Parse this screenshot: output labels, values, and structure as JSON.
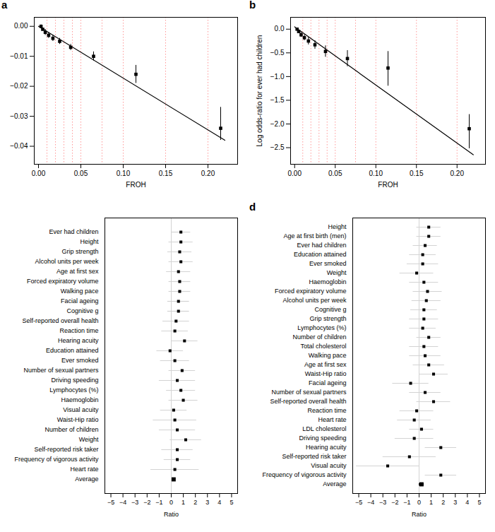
{
  "chart_data": [
    {
      "type": "scatter",
      "label": "a",
      "x": [
        0.003,
        0.005,
        0.008,
        0.012,
        0.017,
        0.025,
        0.038,
        0.065,
        0.115,
        0.215
      ],
      "y": [
        0.0,
        -0.001,
        -0.002,
        -0.003,
        -0.004,
        -0.005,
        -0.007,
        -0.01,
        -0.016,
        -0.034
      ],
      "error_low": [
        0.0005,
        0.0005,
        0.001,
        0.001,
        0.001,
        0.001,
        0.001,
        0.0015,
        0.003,
        0.004
      ],
      "error_high": [
        0.0005,
        0.0005,
        0.001,
        0.001,
        0.001,
        0.001,
        0.001,
        0.0015,
        0.003,
        0.007
      ],
      "color": "black",
      "marker": "square",
      "fit": {
        "x": [
          0.0,
          0.22
        ],
        "y": [
          0.0,
          -0.038
        ],
        "color": "black"
      },
      "vlines": {
        "values": [
          0.01,
          0.02,
          0.03,
          0.04,
          0.05,
          0.075,
          0.1,
          0.15,
          0.2
        ],
        "color": "#FF9999",
        "line_style": "dotted"
      },
      "xlabel": "FROH",
      "xlim": [
        -0.005,
        0.235
      ],
      "ylim": [
        -0.046,
        0.003
      ],
      "xticks": [
        {
          "value": 0,
          "label": "0.00"
        },
        0.05,
        {
          "value": 0.1,
          "label": "0.10"
        },
        0.15,
        {
          "value": 0.2,
          "label": "0.20"
        }
      ],
      "yticks": [
        {
          "value": 0,
          "label": "0.00"
        },
        {
          "value": -0.01,
          "label": "−0.01"
        },
        {
          "value": -0.02,
          "label": "−0.02"
        },
        {
          "value": -0.03,
          "label": "−0.03"
        },
        {
          "value": -0.04,
          "label": "−0.04"
        }
      ]
    },
    {
      "type": "scatter",
      "label": "b",
      "x": [
        0.003,
        0.005,
        0.008,
        0.012,
        0.017,
        0.025,
        0.038,
        0.065,
        0.115,
        0.215
      ],
      "y": [
        0.0,
        -0.05,
        -0.12,
        -0.18,
        -0.25,
        -0.33,
        -0.47,
        -0.62,
        -0.82,
        -2.1
      ],
      "error_low": [
        0.02,
        0.03,
        0.05,
        0.06,
        0.08,
        0.09,
        0.12,
        0.17,
        0.38,
        0.42
      ],
      "error_high": [
        0.02,
        0.03,
        0.05,
        0.06,
        0.08,
        0.09,
        0.12,
        0.17,
        0.35,
        0.3
      ],
      "color": "black",
      "marker": "square",
      "fit": {
        "x": [
          0.0,
          0.22
        ],
        "y": [
          0.05,
          -2.65
        ],
        "color": "black"
      },
      "vlines": {
        "values": [
          0.01,
          0.02,
          0.03,
          0.04,
          0.05,
          0.075,
          0.1,
          0.15,
          0.2
        ],
        "color": "#FF9999",
        "line_style": "dotted"
      },
      "xlabel": "FROH",
      "ylabel": "Log odds-ratio for ever had children",
      "xlim": [
        -0.005,
        0.235
      ],
      "ylim": [
        -2.85,
        0.25
      ],
      "xticks": [
        {
          "value": 0,
          "label": "0.00"
        },
        0.05,
        {
          "value": 0.1,
          "label": "0.10"
        },
        0.15,
        {
          "value": 0.2,
          "label": "0.20"
        }
      ],
      "yticks": [
        {
          "value": 0,
          "label": "0.0"
        },
        {
          "value": -0.5,
          "label": "−0.5"
        },
        {
          "value": -1,
          "label": "−1.0"
        },
        {
          "value": -1.5,
          "label": "−1.5"
        },
        {
          "value": -2,
          "label": "−2.0"
        },
        {
          "value": -2.5,
          "label": "−2.5"
        }
      ]
    },
    {
      "type": "forest",
      "orientation": "horizontal",
      "categories": [
        "Ever had children",
        "Height",
        "Grip strength",
        "Alcohol units per week",
        "Age at first sex",
        "Forced expiratory volume",
        "Walking pace",
        "Facial ageing",
        "Cognitive g",
        "Self-reported overall health",
        "Reaction time",
        "Hearing acuity",
        "Education attained",
        "Ever smoked",
        "Number of sexual partners",
        "Driving speeding",
        "Lymphocytes (%)",
        "Haemoglobin",
        "Visual acuity",
        "Waist-Hip ratio",
        "Number of children",
        "Weight",
        "Self-reported risk taker",
        "Frequency of vigorous activity",
        "Heart rate",
        "Average"
      ],
      "values": [
        0.8,
        0.8,
        0.7,
        0.8,
        0.6,
        0.7,
        0.7,
        0.6,
        0.6,
        0.4,
        0.3,
        1.1,
        -0.1,
        0.3,
        0.9,
        0.5,
        0.8,
        1.0,
        0.2,
        0.3,
        0.5,
        1.2,
        0.5,
        0.5,
        0.3,
        0.2
      ],
      "ci_low": [
        0.0,
        -0.2,
        -0.3,
        -0.2,
        -0.4,
        -0.2,
        -0.2,
        -0.3,
        -0.3,
        -0.7,
        -0.8,
        0.0,
        -1.2,
        -0.9,
        -0.2,
        -1.0,
        -0.4,
        -0.2,
        -0.9,
        -1.5,
        -1.0,
        -0.1,
        -0.8,
        -0.6,
        -1.7,
        0.1
      ],
      "ci_high": [
        1.6,
        1.8,
        1.7,
        1.8,
        1.6,
        1.6,
        1.6,
        1.5,
        1.5,
        1.5,
        1.4,
        2.2,
        1.0,
        1.5,
        2.0,
        2.0,
        2.0,
        2.2,
        1.3,
        2.1,
        2.0,
        2.5,
        1.8,
        1.6,
        2.3,
        0.3
      ],
      "color": "black",
      "marker": "square",
      "colors": [
        "lightgray",
        "lightgray",
        "lightgray",
        "lightgray",
        "lightgray",
        "lightgray",
        "lightgray",
        "lightgray",
        "lightgray",
        "lightgray",
        "lightgray",
        "lightgray",
        "lightgray",
        "lightgray",
        "lightgray",
        "lightgray",
        "lightgray",
        "lightgray",
        "lightgray",
        "lightgray",
        "lightgray",
        "lightgray",
        "lightgray",
        "lightgray",
        "lightgray",
        "black"
      ],
      "vlines": {
        "values": [
          0
        ],
        "color": "lightgray",
        "line_style": "solid"
      },
      "xlabel": "Ratio",
      "xlim": [
        -5.5,
        5.5
      ],
      "xticks": [
        {
          "value": -5,
          "label": "−5"
        },
        {
          "value": -4,
          "label": "−4"
        },
        {
          "value": -3,
          "label": "−3"
        },
        {
          "value": -2,
          "label": "−2"
        },
        {
          "value": -1,
          "label": "−1"
        },
        0,
        1,
        2,
        3,
        4,
        5
      ]
    },
    {
      "type": "forest",
      "orientation": "horizontal",
      "label": "d",
      "categories": [
        "Height",
        "Age at first birth (men)",
        "Ever had children",
        "Education attained",
        "Ever smoked",
        "Weight",
        "Haemoglobin",
        "Forced expiratory volume",
        "Alcohol units per week",
        "Cognitive g",
        "Grip strength",
        "Lymphocytes (%)",
        "Number of children",
        "Total cholesterol",
        "Walking pace",
        "Age at first sex",
        "Waist-Hip ratio",
        "Facial ageing",
        "Number of sexual partners",
        "Self-reported overall health",
        "Reaction time",
        "Heart rate",
        "LDL cholesterol",
        "Driving speeding",
        "Hearing acuity",
        "Self-reported risk taker",
        "Visual acuity",
        "Frequency of vigorous activity",
        "Average"
      ],
      "values": [
        0.8,
        0.8,
        0.5,
        0.3,
        0.3,
        -0.2,
        0.4,
        0.7,
        0.6,
        0.4,
        0.4,
        0.3,
        0.8,
        0.4,
        0.5,
        0.8,
        1.2,
        -0.7,
        0.5,
        1.2,
        -0.2,
        -0.4,
        0.2,
        -0.4,
        1.8,
        -0.8,
        -2.6,
        1.8,
        0.2
      ],
      "ci_low": [
        -0.2,
        -0.2,
        -0.5,
        -0.8,
        -1.0,
        -1.6,
        -0.8,
        -0.5,
        -0.6,
        -0.7,
        -0.8,
        -0.8,
        -0.2,
        -0.8,
        -0.8,
        -0.5,
        0.0,
        -2.2,
        -0.8,
        -0.2,
        -1.6,
        -1.8,
        -0.8,
        -2.0,
        0.5,
        -3.0,
        -5.2,
        0.5,
        0.0
      ],
      "ci_high": [
        1.8,
        1.8,
        1.5,
        1.4,
        1.6,
        1.2,
        1.6,
        1.9,
        1.8,
        1.5,
        1.6,
        1.4,
        1.8,
        1.6,
        1.8,
        2.1,
        2.4,
        0.8,
        1.8,
        2.6,
        1.2,
        1.0,
        1.2,
        1.2,
        3.1,
        1.4,
        0.0,
        3.1,
        0.4
      ],
      "color": "black",
      "marker": "square",
      "colors": [
        "lightgray",
        "lightgray",
        "lightgray",
        "lightgray",
        "lightgray",
        "lightgray",
        "lightgray",
        "lightgray",
        "lightgray",
        "lightgray",
        "lightgray",
        "lightgray",
        "lightgray",
        "lightgray",
        "lightgray",
        "lightgray",
        "lightgray",
        "lightgray",
        "lightgray",
        "lightgray",
        "lightgray",
        "lightgray",
        "lightgray",
        "lightgray",
        "lightgray",
        "lightgray",
        "lightgray",
        "lightgray",
        "black"
      ],
      "vlines": {
        "values": [
          0
        ],
        "color": "lightgray",
        "line_style": "solid"
      },
      "xlabel": "Ratio",
      "xlim": [
        -5.5,
        5.5
      ],
      "xticks": [
        {
          "value": -5,
          "label": "−5"
        },
        {
          "value": -4,
          "label": "−4"
        },
        {
          "value": -3,
          "label": "−3"
        },
        {
          "value": -2,
          "label": "−2"
        },
        {
          "value": -1,
          "label": "−1"
        },
        0,
        1,
        2,
        3,
        4,
        5
      ]
    }
  ]
}
